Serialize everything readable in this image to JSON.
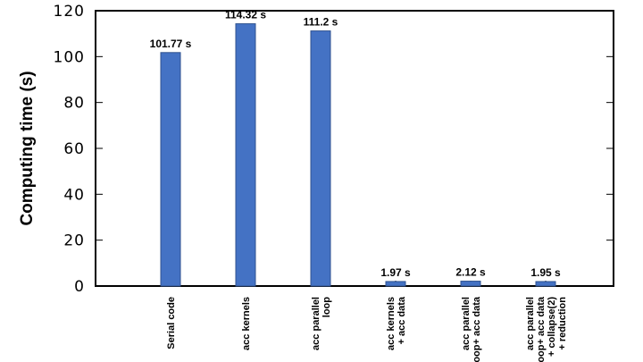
{
  "chart_data": {
    "type": "bar",
    "ylabel": "Computing time (s)",
    "xlabel": "",
    "ylim": [
      0,
      120
    ],
    "yticks": [
      0,
      20,
      40,
      60,
      80,
      100,
      120
    ],
    "grid": false,
    "bar_color": "#4472c4",
    "bar_edge_color": "#2f528f",
    "categories": [
      [
        "Serial code"
      ],
      [
        "acc kernels"
      ],
      [
        "acc parallel",
        "loop"
      ],
      [
        "acc kernels",
        "+ acc data"
      ],
      [
        "acc parallel",
        "loop+ acc data"
      ],
      [
        "acc parallel",
        "loop+ acc data",
        "+ collapse(2)",
        "+ reduction"
      ]
    ],
    "values": [
      101.77,
      114.32,
      111.2,
      1.97,
      2.12,
      1.95
    ],
    "data_labels": [
      "101.77 s",
      "114.32 s",
      "111.2 s",
      "1.97 s",
      "2.12 s",
      "1.95 s"
    ]
  }
}
